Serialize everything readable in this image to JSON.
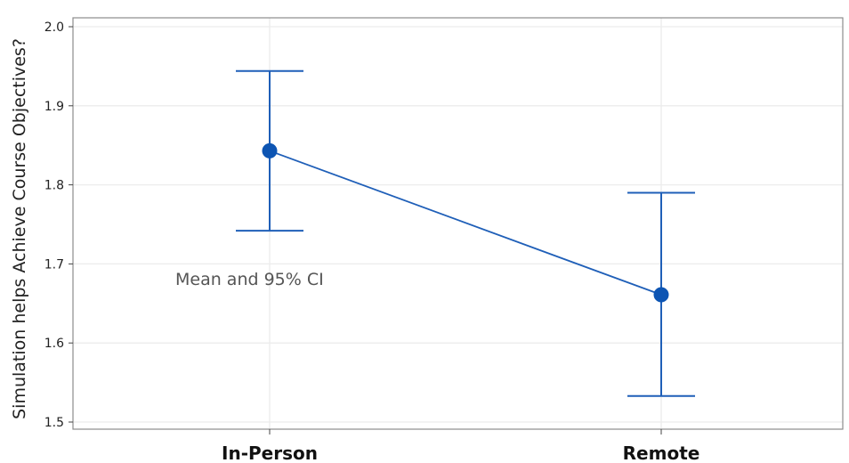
{
  "chart_data": {
    "type": "line",
    "categories": [
      "In-Person",
      "Remote"
    ],
    "series": [
      {
        "values": [
          1.843,
          1.661
        ],
        "ci_lower": [
          1.742,
          1.533
        ],
        "ci_upper": [
          1.944,
          1.79
        ]
      }
    ],
    "ylabel": "Simulation helps Achieve Course Objectives?",
    "ylim": [
      1.5,
      2.0
    ],
    "yticks": [
      "1.5",
      "1.6",
      "1.7",
      "1.8",
      "1.9",
      "2.0"
    ],
    "annotation": "Mean and 95% CI",
    "grid": true,
    "colors": {
      "series": "#1f5fb8",
      "grid": "#ececec",
      "frame": "#8c8c8c"
    }
  }
}
